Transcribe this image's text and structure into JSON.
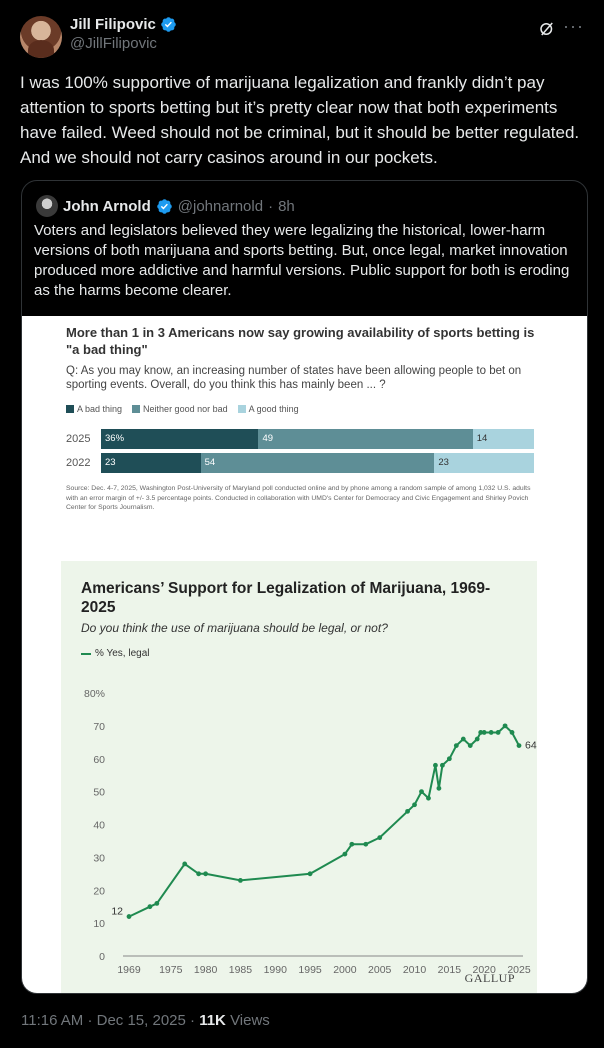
{
  "author": {
    "display_name": "Jill Filipovic",
    "handle": "@JillFilipovic"
  },
  "tweet": {
    "text": "I was 100% supportive of marijuana legalization and frankly didn’t pay attention to sports betting but it’s pretty clear now that both experiments have failed. Weed should not be criminal, but it should be better regulated. And we should not carry casinos around in our pockets."
  },
  "quote": {
    "display_name": "John Arnold",
    "handle": "@johnarnold",
    "time": "8h",
    "separator": "·",
    "text": "Voters and legislators believed they were legalizing the historical, lower-harm versions of both marijuana and sports betting. But, once legal, market innovation produced more addictive and harmful versions. Public support for both is eroding as the harms become clearer."
  },
  "chart_data": [
    {
      "type": "bar",
      "title": "More than 1 in 3 Americans now say growing availability of sports betting is \"a bad thing\"",
      "question": "Q: As you may know, an increasing number of states have been allowing people to bet on sporting events. Overall, do you think this has mainly been ... ?",
      "stacked": true,
      "categories": [
        "2025",
        "2022"
      ],
      "series": [
        {
          "name": "A bad thing",
          "values": [
            36,
            23
          ],
          "labels": [
            "36%",
            "23"
          ],
          "color": "#1f4e57"
        },
        {
          "name": "Neither good nor bad",
          "values": [
            49,
            54
          ],
          "labels": [
            "49",
            "54"
          ],
          "color": "#5e8e96"
        },
        {
          "name": "A good thing",
          "values": [
            14,
            23
          ],
          "labels": [
            "14",
            "23"
          ],
          "color": "#a9d3de"
        }
      ],
      "source": "Source: Dec. 4-7, 2025, Washington Post-University of Maryland poll conducted online and by phone among a random sample of among 1,032 U.S. adults with an error margin of +/- 3.5 percentage points. Conducted in collaboration with UMD's Center for Democracy and Civic Engagement and Shirley Povich Center for Sports Journalism."
    },
    {
      "type": "line",
      "title": "Americans’ Support for Legalization of Marijuana, 1969-2025",
      "subtitle": "Do you think the use of marijuana should be legal, or not?",
      "series": [
        {
          "name": "% Yes, legal",
          "color": "#1f8a50",
          "x": [
            1969,
            1972,
            1973,
            1977,
            1979,
            1980,
            1985,
            1995,
            2000,
            2001,
            2003,
            2005,
            2009,
            2010,
            2011,
            2012,
            2013,
            2013.5,
            2014,
            2015,
            2016,
            2017,
            2018,
            2019,
            2019.5,
            2020,
            2021,
            2022,
            2023,
            2024,
            2025
          ],
          "values": [
            12,
            15,
            16,
            28,
            25,
            25,
            23,
            25,
            31,
            34,
            34,
            36,
            44,
            46,
            50,
            48,
            58,
            51,
            58,
            60,
            64,
            66,
            64,
            66,
            68,
            68,
            68,
            68,
            70,
            68,
            64
          ]
        }
      ],
      "annotations": {
        "start_label": "12",
        "end_label": "64"
      },
      "x_ticks": [
        "1969",
        "1975",
        "1980",
        "1985",
        "1990",
        "1995",
        "2000",
        "2005",
        "2010",
        "2015",
        "2020",
        "2025"
      ],
      "y_ticks": [
        "0",
        "10",
        "20",
        "30",
        "40",
        "50",
        "60",
        "70",
        "80%"
      ],
      "xlim": [
        1969,
        2025
      ],
      "ylim": [
        0,
        80
      ],
      "source_mark": "GALLUP"
    }
  ],
  "footer": {
    "time": "11:16 AM",
    "date": "Dec 15, 2025",
    "separator": "·",
    "views_count": "11K",
    "views_label": "Views"
  },
  "colors": {
    "background": "#000000",
    "text": "#e7e9ea",
    "muted": "#71767b",
    "verified": "#1d9bf0"
  }
}
